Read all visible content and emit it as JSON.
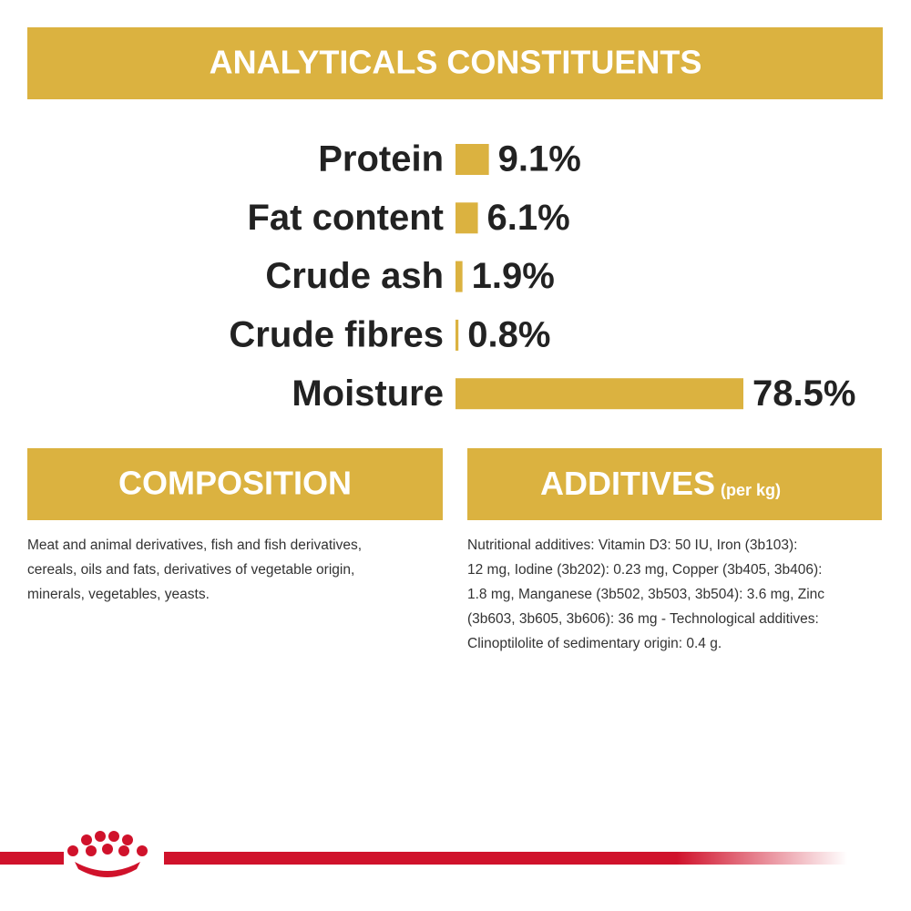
{
  "header": {
    "title": "ANALYTICALS CONSTITUENTS"
  },
  "chart_data": {
    "type": "bar",
    "categories": [
      "Protein",
      "Fat content",
      "Crude ash",
      "Crude fibres",
      "Moisture"
    ],
    "values": [
      9.1,
      6.1,
      1.9,
      0.8,
      78.5
    ],
    "value_labels": [
      "9.1%",
      "6.1%",
      "1.9%",
      "0.8%",
      "78.5%"
    ],
    "color": "#dbb240"
  },
  "composition": {
    "title": "COMPOSITION",
    "lines": [
      "Meat and animal derivatives, fish and fish derivatives,",
      "cereals, oils and fats, derivatives of vegetable origin,",
      "minerals, vegetables, yeasts."
    ]
  },
  "additives": {
    "title": "ADDITIVES",
    "title_note": "(per kg)",
    "lines": [
      "Nutritional additives: Vitamin D3: 50 IU, Iron (3b103):",
      "12 mg, Iodine (3b202): 0.23 mg, Copper (3b405, 3b406):",
      "1.8 mg, Manganese (3b502, 3b503, 3b504): 3.6 mg, Zinc",
      "(3b603, 3b605, 3b606): 36 mg - Technological additives:",
      "Clinoptilolite of sedimentary origin: 0.4 g."
    ]
  }
}
